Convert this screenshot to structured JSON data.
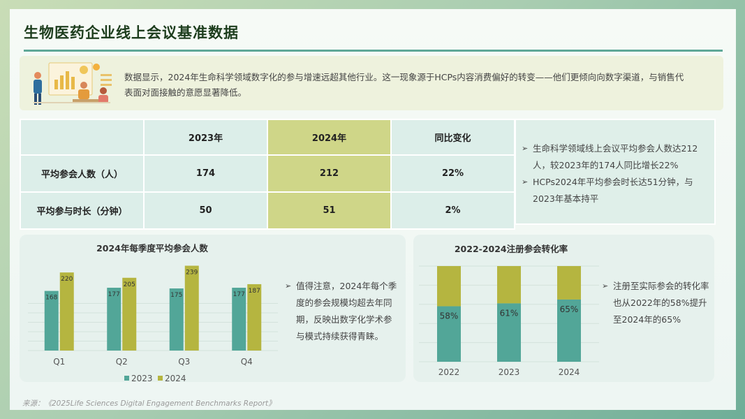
{
  "title": "生物医药企业线上会议基准数据",
  "intro": "数据显示，2024年生命科学领域数字化的参与增速远超其他行业。这一现象源于HCPs内容消费偏好的转变——他们更倾向向数字渠道，与销售代表面对面接触的意愿显著降低。",
  "table": {
    "headers": [
      "",
      "2023年",
      "2024年",
      "同比变化"
    ],
    "rows": [
      {
        "label": "平均参会人数（人）",
        "v2023": "174",
        "v2024": "212",
        "change": "22%"
      },
      {
        "label": "平均参与时长（分钟）",
        "v2023": "50",
        "v2024": "51",
        "change": "2%"
      }
    ]
  },
  "summary": [
    "生命科学领域线上会议平均参会人数达212人，较2023年的174人同比增长22%",
    "HCPs2024年平均参会时长达51分钟，与2023年基本持平"
  ],
  "notes": {
    "left": "值得注意，2024年每个季度的参会规模均超去年同期，反映出数字化学术参与模式持续获得青睐。",
    "right": "注册至实际参会的转化率也从2022年的58%提升至2024年的65%"
  },
  "source": "来源：《2025Life Sciences Digital Engagement Benchmarks Report》",
  "colors": {
    "series_2023": "#52a698",
    "series_2024": "#b5b540",
    "highlight": "#cfd688",
    "rule": "#5fa898"
  },
  "chart_data": [
    {
      "type": "bar",
      "title": "2024年每季度平均参会人数",
      "categories": [
        "Q1",
        "Q2",
        "Q3",
        "Q4"
      ],
      "series": [
        {
          "name": "2023",
          "values": [
            168,
            177,
            175,
            177
          ]
        },
        {
          "name": "2024",
          "values": [
            220,
            205,
            239,
            187
          ]
        }
      ],
      "ylim": [
        0,
        240
      ],
      "grid": true,
      "legend": "bottom"
    },
    {
      "type": "bar",
      "title": "2022-2024注册参会转化率",
      "categories": [
        "2022",
        "2023",
        "2024"
      ],
      "values": [
        58,
        61,
        65
      ],
      "labels": [
        "58%",
        "61%",
        "65%"
      ],
      "stacked_to": 100,
      "unit": "%",
      "grid": true
    }
  ]
}
